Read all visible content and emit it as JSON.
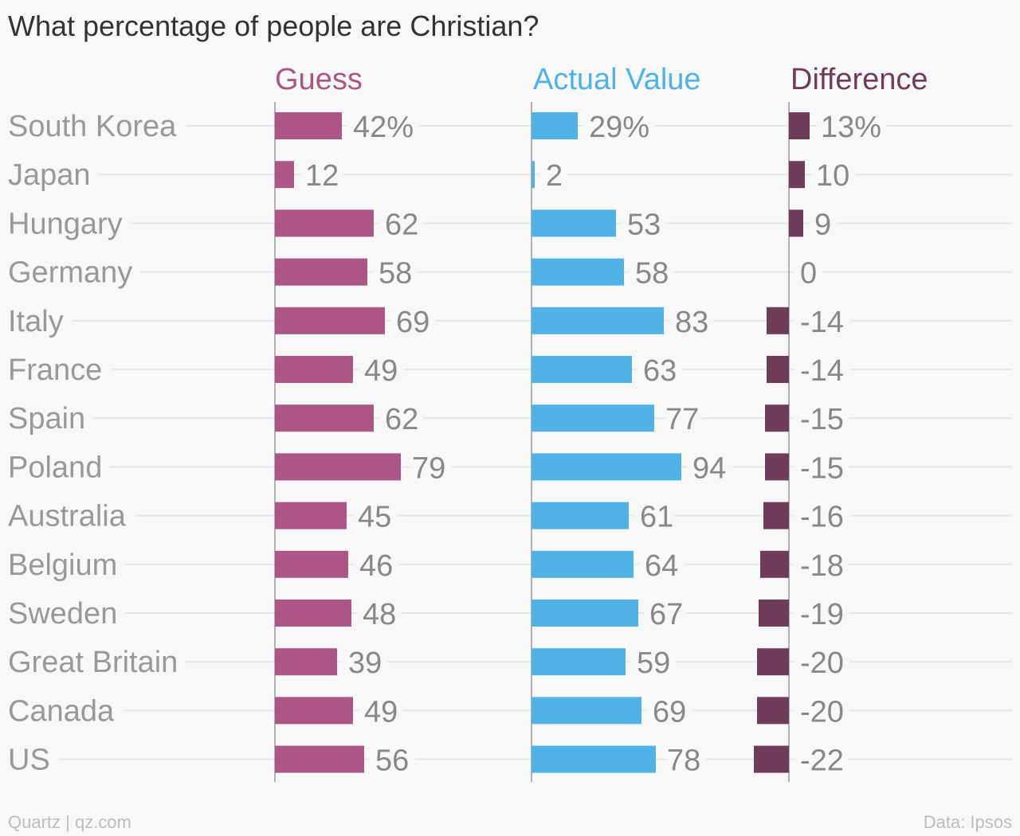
{
  "title": "What percentage of people are Christian?",
  "footer": {
    "source_left": "Quartz | qz.com",
    "source_right": "Data: Ipsos"
  },
  "colors": {
    "guess": "#ac5686",
    "actual": "#51b2e5",
    "difference": "#703c5c",
    "row_label": "#999999",
    "value_label": "#888888",
    "gridline": "#e6e6e6",
    "axis": "#999999"
  },
  "chart_data": {
    "type": "bar",
    "title": "What percentage of people are Christian?",
    "categories": [
      "South Korea",
      "Japan",
      "Hungary",
      "Germany",
      "Italy",
      "France",
      "Spain",
      "Poland",
      "Australia",
      "Belgium",
      "Sweden",
      "Great Britain",
      "Canada",
      "US"
    ],
    "series": [
      {
        "name": "Guess",
        "values": [
          42,
          12,
          62,
          58,
          69,
          49,
          62,
          79,
          45,
          46,
          48,
          39,
          49,
          56
        ]
      },
      {
        "name": "Actual Value",
        "values": [
          29,
          2,
          53,
          58,
          83,
          63,
          77,
          94,
          61,
          64,
          67,
          59,
          69,
          78
        ]
      },
      {
        "name": "Difference",
        "values": [
          13,
          10,
          9,
          0,
          -14,
          -14,
          -15,
          -15,
          -16,
          -18,
          -19,
          -20,
          -20,
          -22
        ]
      }
    ],
    "value_suffix_first_row": "%",
    "orientation": "horizontal",
    "grid": true
  }
}
